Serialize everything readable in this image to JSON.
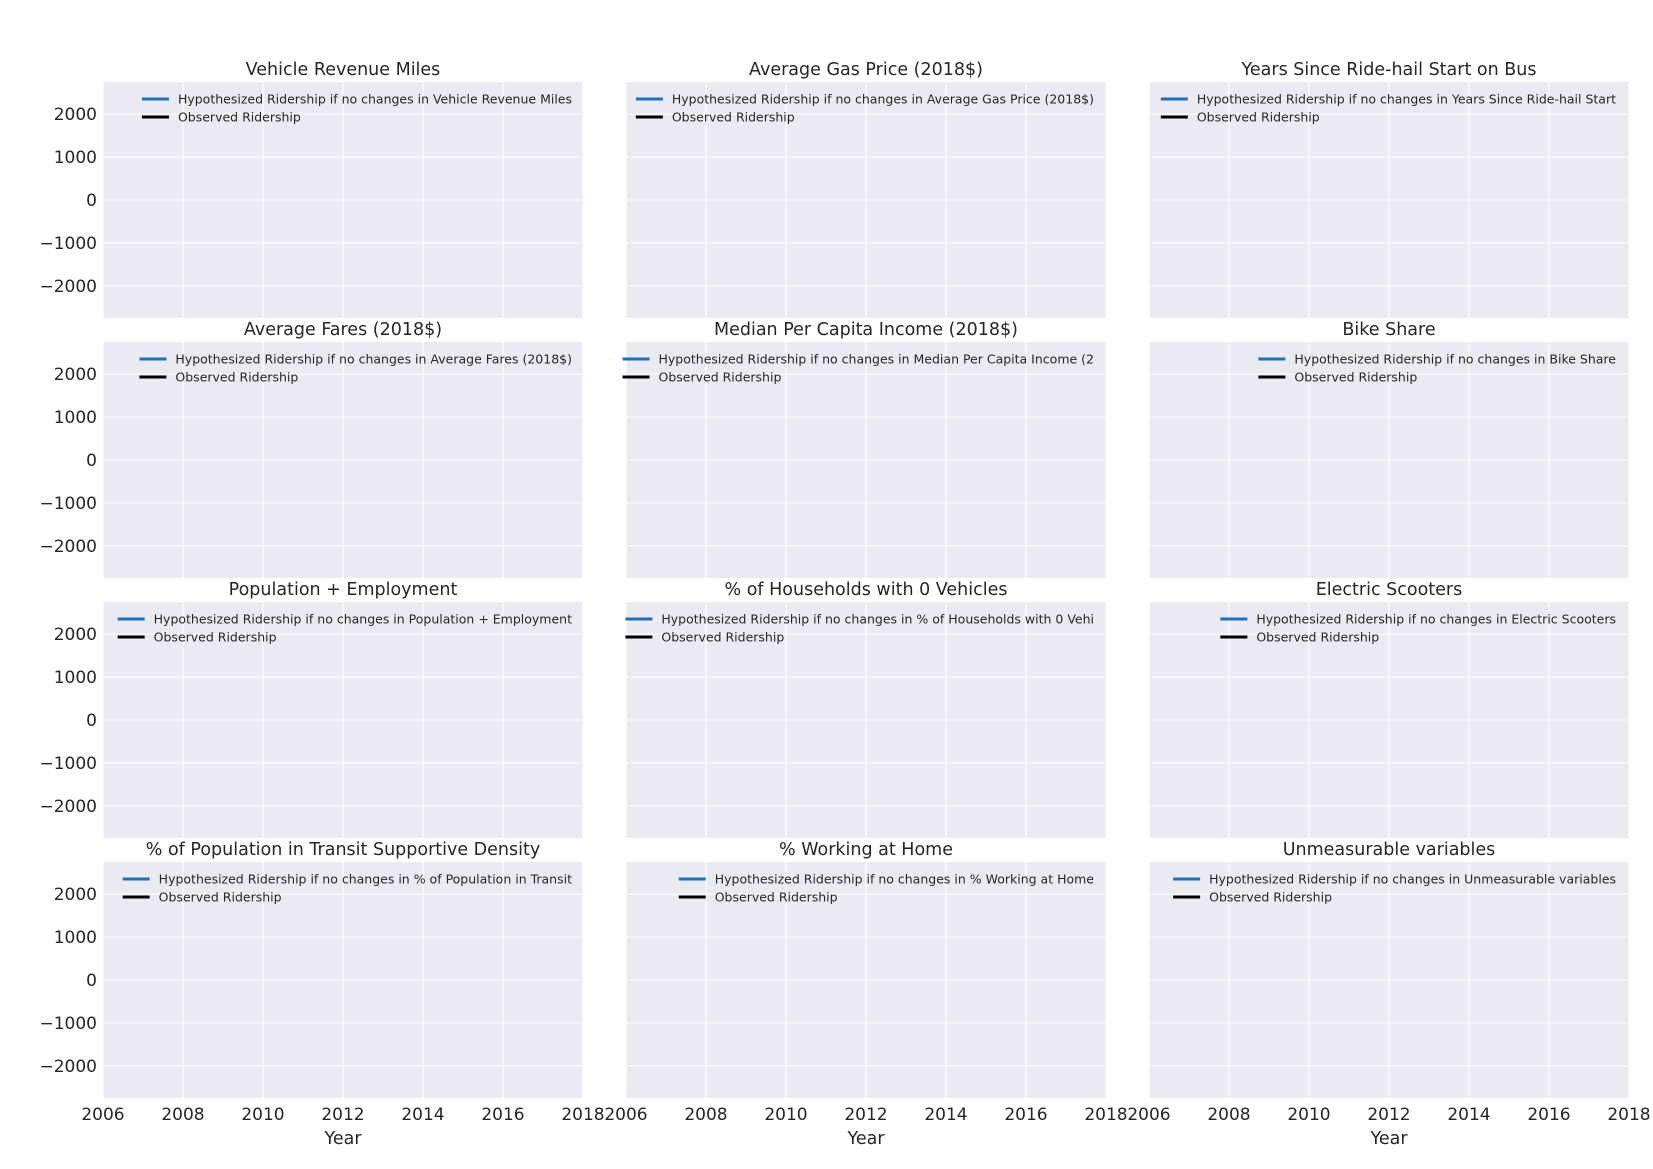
{
  "chart_data": {
    "type": "line",
    "xlabel": "Year",
    "ylabel": "",
    "xlim": [
      2006,
      2018
    ],
    "ylim": [
      -2750,
      2750
    ],
    "xticks": [
      2006,
      2008,
      2010,
      2012,
      2014,
      2016,
      2018
    ],
    "yticks": [
      2000,
      1000,
      0,
      -1000,
      -2000
    ],
    "xtick_labels": [
      "2006",
      "2008",
      "2010",
      "2012",
      "2014",
      "2016",
      "2018"
    ],
    "ytick_labels": [
      "2000",
      "1000",
      "0",
      "−1000",
      "−2000"
    ],
    "grid": true,
    "legend_placement": "upper right",
    "series_style": [
      {
        "color": "#1f6fba"
      },
      {
        "color": "#000000"
      }
    ],
    "panels": [
      {
        "title": "Vehicle Revenue Miles",
        "legend": [
          "Hypothesized Ridership if no changes in Vehicle Revenue Miles",
          "Observed Ridership"
        ]
      },
      {
        "title": "Average Gas Price (2018$)",
        "legend": [
          "Hypothesized Ridership if no changes in Average Gas Price (2018$)",
          "Observed Ridership"
        ]
      },
      {
        "title": "Years Since Ride-hail Start on Bus",
        "legend": [
          "Hypothesized Ridership if no changes in Years Since Ride-hail Start",
          "Observed Ridership"
        ]
      },
      {
        "title": "Average Fares (2018$)",
        "legend": [
          "Hypothesized Ridership if no changes in Average Fares (2018$)",
          "Observed Ridership"
        ]
      },
      {
        "title": "Median Per Capita Income (2018$)",
        "legend": [
          "Hypothesized Ridership if no changes in Median Per Capita Income (2",
          "Observed Ridership"
        ]
      },
      {
        "title": "Bike Share",
        "legend": [
          "Hypothesized Ridership if no changes in Bike Share",
          "Observed Ridership"
        ]
      },
      {
        "title": "Population + Employment",
        "legend": [
          "Hypothesized Ridership if no changes in Population + Employment",
          "Observed Ridership"
        ]
      },
      {
        "title": "% of Households with 0 Vehicles",
        "legend": [
          "Hypothesized Ridership if no changes in % of Households with 0 Vehi",
          "Observed Ridership"
        ]
      },
      {
        "title": "Electric Scooters",
        "legend": [
          "Hypothesized Ridership if no changes in Electric Scooters",
          "Observed Ridership"
        ]
      },
      {
        "title": "% of Population in Transit Supportive Density",
        "legend": [
          "Hypothesized Ridership if no changes in % of Population in Transit",
          "Observed Ridership"
        ]
      },
      {
        "title": "% Working at Home",
        "legend": [
          "Hypothesized Ridership if no changes in % Working at Home",
          "Observed Ridership"
        ]
      },
      {
        "title": "Unmeasurable variables",
        "legend": [
          "Hypothesized Ridership if no changes in Unmeasurable variables",
          "Observed Ridership"
        ]
      }
    ]
  }
}
